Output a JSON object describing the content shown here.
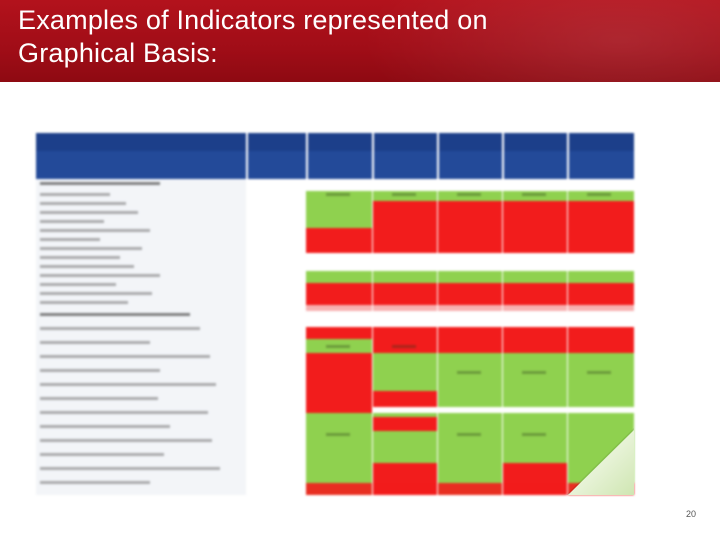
{
  "slide": {
    "title_line1": "Examples of Indicators represented on",
    "title_line2": "Graphical Basis:",
    "page_number": "20"
  },
  "colors": {
    "title_bar": "#a00d17",
    "table_header": "#234a99",
    "good": "#8fd14f",
    "bad": "#f21c1c"
  },
  "image": {
    "kind": "blurred-spreadsheet-screenshot"
  }
}
